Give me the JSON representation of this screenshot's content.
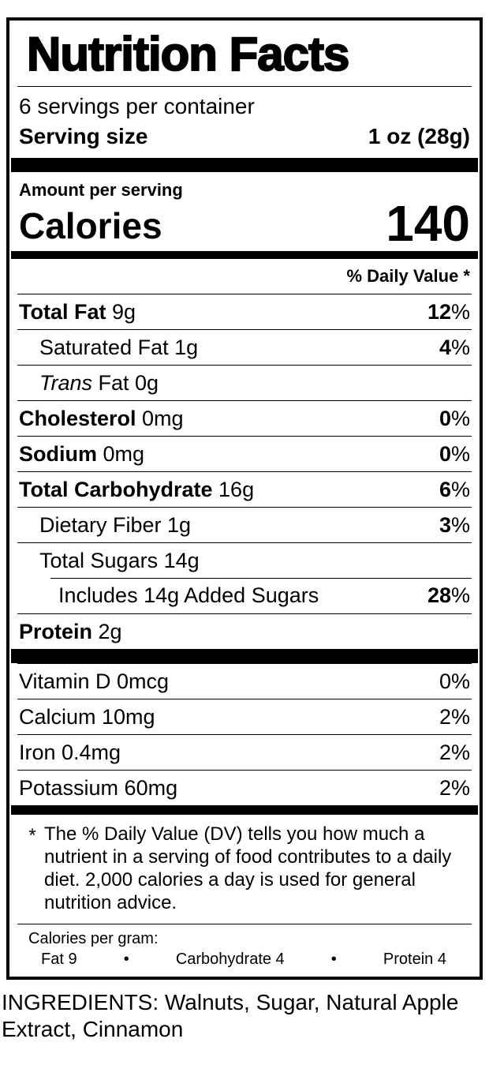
{
  "label": {
    "title": "Nutrition Facts",
    "servings_per_container": "6 servings per container",
    "serving_size_label": "Serving size",
    "serving_size_value": "1 oz (28g)",
    "amount_per_serving": "Amount per serving",
    "calories_label": "Calories",
    "calories_value": "140",
    "daily_value_header": "% Daily Value *",
    "rows": [
      {
        "bold": "Total Fat",
        "plain": " 9g",
        "dv": "12",
        "dvp": "%"
      },
      {
        "plain": "Saturated Fat 1g",
        "dv": "4",
        "dvp": "%"
      },
      {
        "italic": "Trans",
        "plain": " Fat 0g"
      },
      {
        "bold": "Cholesterol",
        "plain": " 0mg",
        "dv": "0",
        "dvp": "%"
      },
      {
        "bold": "Sodium",
        "plain": " 0mg",
        "dv": "0",
        "dvp": "%"
      },
      {
        "bold": "Total Carbohydrate",
        "plain": " 16g",
        "dv": "6",
        "dvp": "%"
      },
      {
        "plain": "Dietary Fiber 1g",
        "dv": "3",
        "dvp": "%"
      },
      {
        "plain": "Total Sugars 14g"
      },
      {
        "plain": "Includes 14g Added Sugars",
        "dv": "28",
        "dvp": "%"
      },
      {
        "bold": "Protein",
        "plain": " 2g"
      }
    ],
    "vitamins": [
      {
        "name": "Vitamin D 0mcg",
        "dv": "0%"
      },
      {
        "name": "Calcium 10mg",
        "dv": "2%"
      },
      {
        "name": "Iron 0.4mg",
        "dv": "2%"
      },
      {
        "name": "Potassium 60mg",
        "dv": "2%"
      }
    ],
    "footnote": {
      "marker": "*",
      "text": "The % Daily Value (DV) tells you how much a nutrient in a serving of food contributes to a daily diet. 2,000 calories a day is used for general nutrition advice."
    },
    "calories_per_gram": {
      "label": "Calories per gram:",
      "fat": "Fat 9",
      "carbohydrate": "Carbohydrate 4",
      "protein": "Protein 4",
      "bullet": "•"
    }
  },
  "ingredients": "INGREDIENTS: Walnuts, Sugar, Natural Apple Extract, Cinnamon"
}
